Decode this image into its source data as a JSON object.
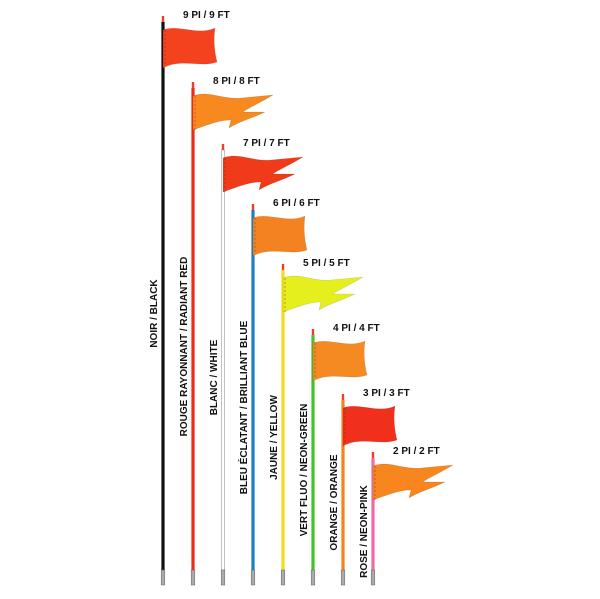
{
  "items": [
    {
      "size": "9 PI / 9 FT",
      "color": "NOIR / BLACK"
    },
    {
      "size": "8 PI / 8 FT",
      "color": "ROUGE RAYONNANT / RADIANT RED"
    },
    {
      "size": "7 PI / 7 FT",
      "color": "BLANC / WHITE"
    },
    {
      "size": "6 PI / 6 FT",
      "color": "BLEU ÉCLATANT / BRILLIANT BLUE"
    },
    {
      "size": "5 PI / 5 FT",
      "color": "JAUNE / YELLOW"
    },
    {
      "size": "4 PI / 4 FT",
      "color": "VERT FLUO / NEON-GREEN"
    },
    {
      "size": "3 PI / 3 FT",
      "color": "ORANGE / ORANGE"
    },
    {
      "size": "2 PI / 2 FT",
      "color": "ROSE / NEON-PINK"
    }
  ]
}
